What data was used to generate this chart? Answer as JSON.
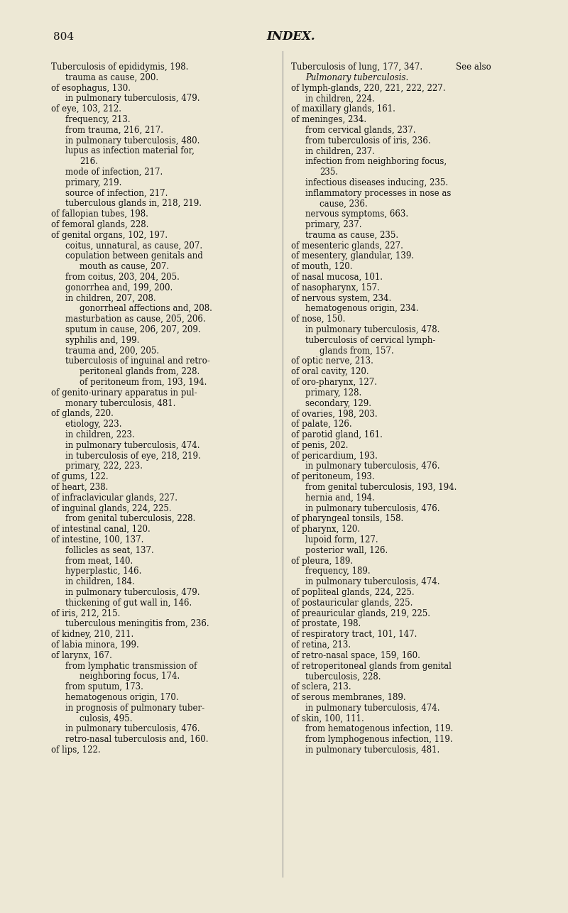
{
  "background_color": "#ede8d5",
  "page_number": "804",
  "page_title": "INDEX.",
  "left_column": [
    [
      "Tuberculosis of epididymis, 198.",
      0,
      false
    ],
    [
      "trauma as cause, 200.",
      1,
      false
    ],
    [
      "of esophagus, 130.",
      0,
      false
    ],
    [
      "in pulmonary tuberculosis, 479.",
      1,
      false
    ],
    [
      "of eye, 103, 212.",
      0,
      false
    ],
    [
      "frequency, 213.",
      1,
      false
    ],
    [
      "from trauma, 216, 217.",
      1,
      false
    ],
    [
      "in pulmonary tuberculosis, 480.",
      1,
      false
    ],
    [
      "lupus as infection material for,",
      1,
      false
    ],
    [
      "216.",
      2,
      false
    ],
    [
      "mode of infection, 217.",
      1,
      false
    ],
    [
      "primary, 219.",
      1,
      false
    ],
    [
      "source of infection, 217.",
      1,
      false
    ],
    [
      "tuberculous glands in, 218, 219.",
      1,
      false
    ],
    [
      "of fallopian tubes, 198.",
      0,
      false
    ],
    [
      "of femoral glands, 228.",
      0,
      false
    ],
    [
      "of genital organs, 102, 197.",
      0,
      false
    ],
    [
      "coitus, unnatural, as cause, 207.",
      1,
      false
    ],
    [
      "copulation between genitals and",
      1,
      false
    ],
    [
      "mouth as cause, 207.",
      2,
      false
    ],
    [
      "from coitus, 203, 204, 205.",
      1,
      false
    ],
    [
      "gonorrhea and, 199, 200.",
      1,
      false
    ],
    [
      "in children, 207, 208.",
      1,
      false
    ],
    [
      "gonorrheal affections and, 208.",
      2,
      false
    ],
    [
      "masturbation as cause, 205, 206.",
      1,
      false
    ],
    [
      "sputum in cause, 206, 207, 209.",
      1,
      false
    ],
    [
      "syphilis and, 199.",
      1,
      false
    ],
    [
      "trauma and, 200, 205.",
      1,
      false
    ],
    [
      "tuberculosis of inguinal and retro-",
      1,
      false
    ],
    [
      "peritoneal glands from, 228.",
      2,
      false
    ],
    [
      "of peritoneum from, 193, 194.",
      2,
      false
    ],
    [
      "of genito-urinary apparatus in pul-",
      0,
      false
    ],
    [
      "monary tuberculosis, 481.",
      1,
      false
    ],
    [
      "of glands, 220.",
      0,
      false
    ],
    [
      "etiology, 223.",
      1,
      false
    ],
    [
      "in children, 223.",
      1,
      false
    ],
    [
      "in pulmonary tuberculosis, 474.",
      1,
      false
    ],
    [
      "in tuberculosis of eye, 218, 219.",
      1,
      false
    ],
    [
      "primary, 222, 223.",
      1,
      false
    ],
    [
      "of gums, 122.",
      0,
      false
    ],
    [
      "of heart, 238.",
      0,
      false
    ],
    [
      "of infraclavicular glands, 227.",
      0,
      false
    ],
    [
      "of inguinal glands, 224, 225.",
      0,
      false
    ],
    [
      "from genital tuberculosis, 228.",
      1,
      false
    ],
    [
      "of intestinal canal, 120.",
      0,
      false
    ],
    [
      "of intestine, 100, 137.",
      0,
      false
    ],
    [
      "follicles as seat, 137.",
      1,
      false
    ],
    [
      "from meat, 140.",
      1,
      false
    ],
    [
      "hyperplastic, 146.",
      1,
      false
    ],
    [
      "in children, 184.",
      1,
      false
    ],
    [
      "in pulmonary tuberculosis, 479.",
      1,
      false
    ],
    [
      "thickening of gut wall in, 146.",
      1,
      false
    ],
    [
      "of iris, 212, 215.",
      0,
      false
    ],
    [
      "tuberculous meningitis from, 236.",
      1,
      false
    ],
    [
      "of kidney, 210, 211.",
      0,
      false
    ],
    [
      "of labia minora, 199.",
      0,
      false
    ],
    [
      "of larynx, 167.",
      0,
      false
    ],
    [
      "from lymphatic transmission of",
      1,
      false
    ],
    [
      "neighboring focus, 174.",
      2,
      false
    ],
    [
      "from sputum, 173.",
      1,
      false
    ],
    [
      "hematogenous origin, 170.",
      1,
      false
    ],
    [
      "in prognosis of pulmonary tuber-",
      1,
      false
    ],
    [
      "culosis, 495.",
      2,
      false
    ],
    [
      "in pulmonary tuberculosis, 476.",
      1,
      false
    ],
    [
      "retro-nasal tuberculosis and, 160.",
      1,
      false
    ],
    [
      "of lips, 122.",
      0,
      false
    ]
  ],
  "right_column_line1": "Tuberculosis of lung, 177, 347.",
  "right_column_line1b": "See also",
  "right_column_line2": "Pulmonary tuberculosis.",
  "right_column": [
    [
      "of lymph-glands, 220, 221, 222, 227.",
      0,
      false
    ],
    [
      "in children, 224.",
      1,
      false
    ],
    [
      "of maxillary glands, 161.",
      0,
      false
    ],
    [
      "of meninges, 234.",
      0,
      false
    ],
    [
      "from cervical glands, 237.",
      1,
      false
    ],
    [
      "from tuberculosis of iris, 236.",
      1,
      false
    ],
    [
      "in children, 237.",
      1,
      false
    ],
    [
      "infection from neighboring focus,",
      1,
      false
    ],
    [
      "235.",
      2,
      false
    ],
    [
      "infectious diseases inducing, 235.",
      1,
      false
    ],
    [
      "inflammatory processes in nose as",
      1,
      false
    ],
    [
      "cause, 236.",
      2,
      false
    ],
    [
      "nervous symptoms, 663.",
      1,
      false
    ],
    [
      "primary, 237.",
      1,
      false
    ],
    [
      "trauma as cause, 235.",
      1,
      false
    ],
    [
      "of mesenteric glands, 227.",
      0,
      false
    ],
    [
      "of mesentery, glandular, 139.",
      0,
      false
    ],
    [
      "of mouth, 120.",
      0,
      false
    ],
    [
      "of nasal mucosa, 101.",
      0,
      false
    ],
    [
      "of nasopharynx, 157.",
      0,
      false
    ],
    [
      "of nervous system, 234.",
      0,
      false
    ],
    [
      "hematogenous origin, 234.",
      1,
      false
    ],
    [
      "of nose, 150.",
      0,
      false
    ],
    [
      "in pulmonary tuberculosis, 478.",
      1,
      false
    ],
    [
      "tuberculosis of cervical lymph-",
      1,
      false
    ],
    [
      "glands from, 157.",
      2,
      false
    ],
    [
      "of optic nerve, 213.",
      0,
      false
    ],
    [
      "of oral cavity, 120.",
      0,
      false
    ],
    [
      "of oro-pharynx, 127.",
      0,
      false
    ],
    [
      "primary, 128.",
      1,
      false
    ],
    [
      "secondary, 129.",
      1,
      false
    ],
    [
      "of ovaries, 198, 203.",
      0,
      false
    ],
    [
      "of palate, 126.",
      0,
      false
    ],
    [
      "of parotid gland, 161.",
      0,
      false
    ],
    [
      "of penis, 202.",
      0,
      false
    ],
    [
      "of pericardium, 193.",
      0,
      false
    ],
    [
      "in pulmonary tuberculosis, 476.",
      1,
      false
    ],
    [
      "of peritoneum, 193.",
      0,
      false
    ],
    [
      "from genital tuberculosis, 193, 194.",
      1,
      false
    ],
    [
      "hernia and, 194.",
      1,
      false
    ],
    [
      "in pulmonary tuberculosis, 476.",
      1,
      false
    ],
    [
      "of pharyngeal tonsils, 158.",
      0,
      false
    ],
    [
      "of pharynx, 120.",
      0,
      false
    ],
    [
      "lupoid form, 127.",
      1,
      false
    ],
    [
      "posterior wall, 126.",
      1,
      false
    ],
    [
      "of pleura, 189.",
      0,
      false
    ],
    [
      "frequency, 189.",
      1,
      false
    ],
    [
      "in pulmonary tuberculosis, 474.",
      1,
      false
    ],
    [
      "of popliteal glands, 224, 225.",
      0,
      false
    ],
    [
      "of postauricular glands, 225.",
      0,
      false
    ],
    [
      "of preauricular glands, 219, 225.",
      0,
      false
    ],
    [
      "of prostate, 198.",
      0,
      false
    ],
    [
      "of respiratory tract, 101, 147.",
      0,
      false
    ],
    [
      "of retina, 213.",
      0,
      false
    ],
    [
      "of retro-nasal space, 159, 160.",
      0,
      false
    ],
    [
      "of retroperitoneal glands from genital",
      0,
      false
    ],
    [
      "tuberculosis, 228.",
      1,
      false
    ],
    [
      "of sclera, 213.",
      0,
      false
    ],
    [
      "of serous membranes, 189.",
      0,
      false
    ],
    [
      "in pulmonary tuberculosis, 474.",
      1,
      false
    ],
    [
      "of skin, 100, 111.",
      0,
      false
    ],
    [
      "from hematogenous infection, 119.",
      1,
      false
    ],
    [
      "from lymphogenous infection, 119.",
      1,
      false
    ],
    [
      "in pulmonary tuberculosis, 481.",
      1,
      false
    ]
  ]
}
